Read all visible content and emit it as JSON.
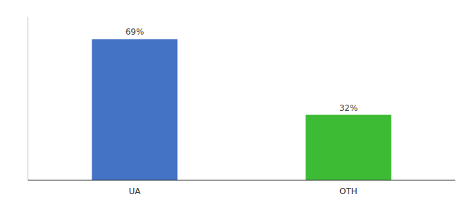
{
  "chart_data": {
    "type": "bar",
    "categories": [
      "UA",
      "OTH"
    ],
    "values": [
      69,
      32
    ],
    "value_labels": [
      "69%",
      "32%"
    ],
    "colors": [
      "#4472c4",
      "#3dbb35"
    ],
    "ylim": [
      0,
      80
    ],
    "data_labels": true,
    "tick_labels": "x",
    "grid": false
  }
}
